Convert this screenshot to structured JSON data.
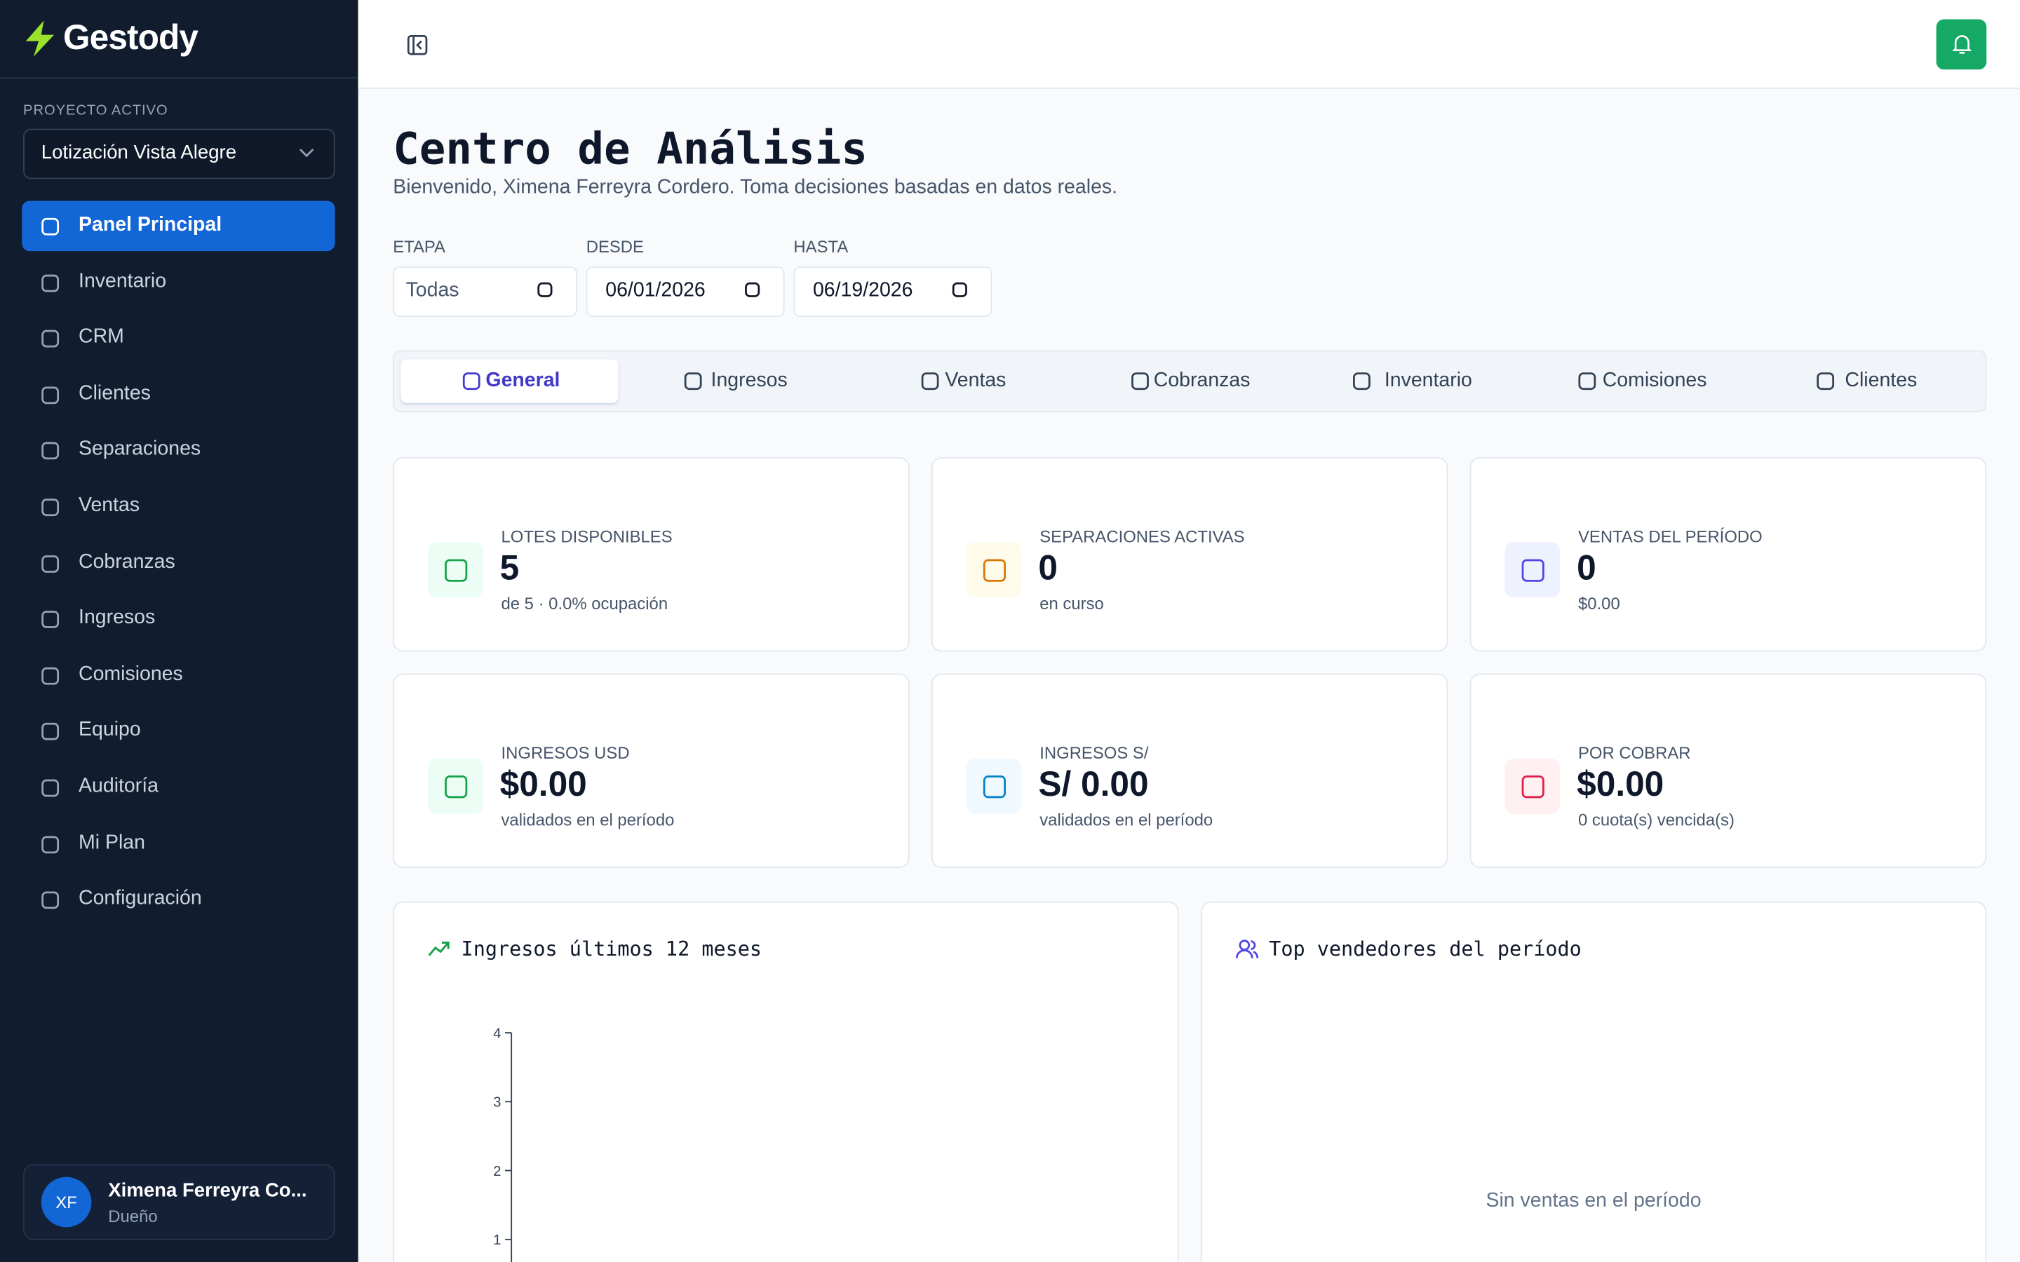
{
  "sidebar": {
    "brand": "Gestody",
    "project_label": "PROYECTO ACTIVO",
    "project": "Lotización Vista Alegre",
    "nav": [
      "Panel Principal",
      "Inventario",
      "CRM",
      "Clientes",
      "Separaciones",
      "Ventas",
      "Cobranzas",
      "Ingresos",
      "Comisiones",
      "Equipo",
      "Auditoría",
      "Mi Plan",
      "Configuración"
    ],
    "user": {
      "initials": "XF",
      "name": "Ximena Ferreyra Co...",
      "role": "Dueño"
    }
  },
  "page": {
    "title": "Centro de Análisis",
    "subtitle": "Bienvenido, Ximena Ferreyra Cordero. Toma decisiones basadas en datos reales.",
    "filters": [
      {
        "label": "ETAPA",
        "value": "Todas"
      },
      {
        "label": "DESDE",
        "value": "06/01/2026"
      },
      {
        "label": "HASTA",
        "value": "06/19/2026"
      }
    ],
    "tabs": [
      "General",
      "Ingresos",
      "Ventas",
      "Cobranzas",
      "Inventario",
      "Comisiones",
      "Clientes"
    ],
    "cards": [
      {
        "label": "LOTES DISPONIBLES",
        "value": "5",
        "sub": "de 5 · 0.0% ocupación"
      },
      {
        "label": "SEPARACIONES ACTIVAS",
        "value": "0",
        "sub": "en curso"
      },
      {
        "label": "VENTAS DEL PERÍODO",
        "value": "0",
        "sub": "$0.00"
      },
      {
        "label": "INGRESOS USD",
        "value": "$0.00",
        "sub": "validados en el período"
      },
      {
        "label": "INGRESOS S/",
        "value": "S/ 0.00",
        "sub": "validados en el período"
      },
      {
        "label": "POR COBRAR",
        "value": "$0.00",
        "sub": "0 cuota(s) vencida(s)"
      }
    ]
  },
  "chart_data": {
    "type": "line",
    "title": "Ingresos últimos 12 meses",
    "ylim": [
      0,
      4
    ],
    "yticks": [
      1,
      2,
      3,
      4
    ]
  },
  "sellers": {
    "title": "Top vendedores del período",
    "empty": "Sin ventas en el período"
  }
}
